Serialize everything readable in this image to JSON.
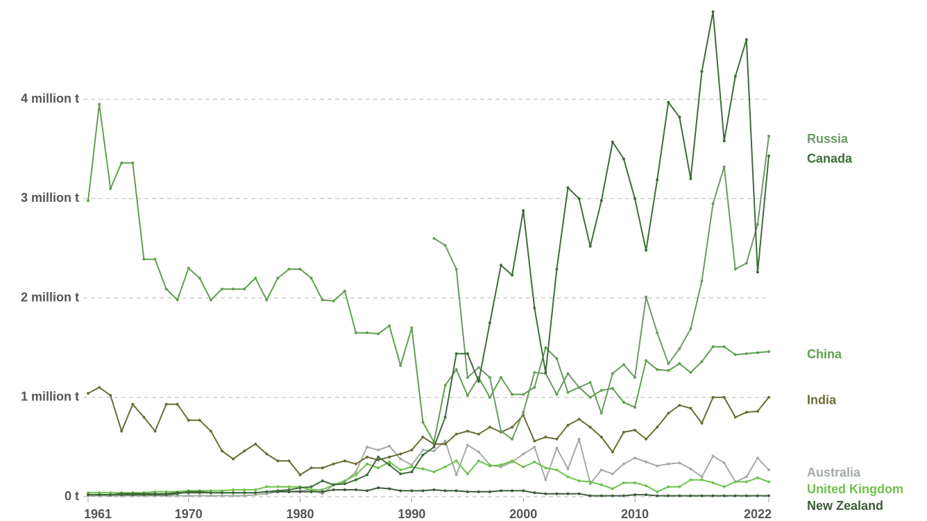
{
  "chart_data": {
    "type": "line",
    "x": [
      1961,
      1962,
      1963,
      1964,
      1965,
      1966,
      1967,
      1968,
      1969,
      1970,
      1971,
      1972,
      1973,
      1974,
      1975,
      1976,
      1977,
      1978,
      1979,
      1980,
      1981,
      1982,
      1983,
      1984,
      1985,
      1986,
      1987,
      1988,
      1989,
      1990,
      1991,
      1992,
      1993,
      1994,
      1995,
      1996,
      1997,
      1998,
      1999,
      2000,
      2001,
      2002,
      2003,
      2004,
      2005,
      2006,
      2007,
      2008,
      2009,
      2010,
      2011,
      2012,
      2013,
      2014,
      2015,
      2016,
      2017,
      2018,
      2019,
      2020,
      2021,
      2022
    ],
    "xlim": [
      1961,
      2022
    ],
    "xticks": [
      1961,
      1970,
      1980,
      1990,
      2000,
      2010,
      2022
    ],
    "ylim": [
      0,
      4950000
    ],
    "yticks": [
      {
        "value": 0,
        "label": "0 t"
      },
      {
        "value": 1000000,
        "label": "1 million t"
      },
      {
        "value": 2000000,
        "label": "2 million t"
      },
      {
        "value": 3000000,
        "label": "3 million t"
      },
      {
        "value": 4000000,
        "label": "4 million t"
      }
    ],
    "grid": true,
    "series": [
      {
        "name": "Australia",
        "color": "#a3aca3",
        "values": [
          10000,
          10000,
          10000,
          10000,
          10000,
          10000,
          10000,
          10000,
          10000,
          10000,
          10000,
          10000,
          10000,
          10000,
          10000,
          20000,
          30000,
          50000,
          50000,
          60000,
          70000,
          30000,
          120000,
          150000,
          250000,
          500000,
          470000,
          510000,
          380000,
          320000,
          470000,
          460000,
          560000,
          220000,
          520000,
          450000,
          320000,
          300000,
          350000,
          430000,
          500000,
          170000,
          490000,
          280000,
          580000,
          130000,
          270000,
          230000,
          330000,
          390000,
          350000,
          310000,
          330000,
          340000,
          280000,
          200000,
          410000,
          340000,
          150000,
          200000,
          390000,
          270000
        ]
      },
      {
        "name": "India",
        "color": "#6b6b35",
        "values": [
          1040000,
          1100000,
          1020000,
          660000,
          930000,
          800000,
          660000,
          930000,
          930000,
          770000,
          770000,
          660000,
          460000,
          380000,
          460000,
          530000,
          430000,
          360000,
          360000,
          220000,
          290000,
          290000,
          330000,
          360000,
          330000,
          400000,
          370000,
          400000,
          430000,
          470000,
          600000,
          530000,
          530000,
          630000,
          660000,
          630000,
          700000,
          650000,
          700000,
          820000,
          560000,
          600000,
          580000,
          720000,
          780000,
          700000,
          600000,
          450000,
          650000,
          670000,
          580000,
          700000,
          840000,
          920000,
          890000,
          740000,
          1000000,
          1000000,
          800000,
          850000,
          860000,
          1000000
        ]
      },
      {
        "name": "United Kingdom",
        "color": "#6cc24a",
        "values": [
          40000,
          40000,
          40000,
          40000,
          40000,
          40000,
          50000,
          50000,
          50000,
          60000,
          60000,
          60000,
          60000,
          70000,
          70000,
          70000,
          100000,
          100000,
          100000,
          100000,
          70000,
          70000,
          120000,
          160000,
          220000,
          330000,
          290000,
          350000,
          270000,
          300000,
          280000,
          250000,
          300000,
          360000,
          230000,
          360000,
          310000,
          320000,
          360000,
          300000,
          350000,
          290000,
          270000,
          200000,
          160000,
          150000,
          120000,
          80000,
          140000,
          140000,
          110000,
          50000,
          100000,
          100000,
          170000,
          170000,
          140000,
          100000,
          150000,
          150000,
          190000,
          150000
        ]
      },
      {
        "name": "New Zealand",
        "color": "#3d5c3a",
        "values": [
          20000,
          20000,
          20000,
          30000,
          30000,
          30000,
          30000,
          30000,
          40000,
          40000,
          40000,
          40000,
          40000,
          40000,
          40000,
          40000,
          50000,
          50000,
          50000,
          50000,
          50000,
          50000,
          70000,
          70000,
          70000,
          60000,
          90000,
          80000,
          60000,
          60000,
          60000,
          70000,
          60000,
          60000,
          50000,
          50000,
          50000,
          60000,
          60000,
          60000,
          40000,
          30000,
          30000,
          30000,
          30000,
          10000,
          10000,
          10000,
          10000,
          20000,
          20000,
          10000,
          10000,
          10000,
          10000,
          10000,
          10000,
          10000,
          10000,
          10000,
          10000,
          10000
        ]
      },
      {
        "name": "China",
        "color": "#5ea04e",
        "values": [
          2980000,
          3950000,
          3100000,
          3360000,
          3360000,
          2390000,
          2390000,
          2090000,
          1980000,
          2300000,
          2200000,
          1980000,
          2090000,
          2090000,
          2090000,
          2200000,
          1980000,
          2200000,
          2290000,
          2290000,
          2200000,
          1980000,
          1970000,
          2070000,
          1650000,
          1650000,
          1640000,
          1720000,
          1320000,
          1700000,
          750000,
          550000,
          1120000,
          1280000,
          1020000,
          1200000,
          1000000,
          1200000,
          1030000,
          1030000,
          1100000,
          1500000,
          1390000,
          1050000,
          1100000,
          1000000,
          1070000,
          1090000,
          950000,
          900000,
          1370000,
          1280000,
          1270000,
          1340000,
          1250000,
          1360000,
          1510000,
          1510000,
          1430000,
          1440000,
          1450000,
          1460000
        ]
      },
      {
        "name": "Russia",
        "color": "#6b9a65",
        "values": [
          null,
          null,
          null,
          null,
          null,
          null,
          null,
          null,
          null,
          null,
          null,
          null,
          null,
          null,
          null,
          null,
          null,
          null,
          null,
          null,
          null,
          null,
          null,
          null,
          null,
          null,
          null,
          null,
          null,
          null,
          null,
          2600000,
          2530000,
          2290000,
          1200000,
          1300000,
          1200000,
          660000,
          580000,
          850000,
          1250000,
          1240000,
          1030000,
          1240000,
          1100000,
          1150000,
          840000,
          1240000,
          1330000,
          1200000,
          2010000,
          1650000,
          1340000,
          1490000,
          1690000,
          2170000,
          2950000,
          3320000,
          2290000,
          2350000,
          2740000,
          3630000
        ]
      },
      {
        "name": "Canada",
        "color": "#3e6b3a",
        "values": [
          20000,
          20000,
          20000,
          20000,
          20000,
          20000,
          20000,
          20000,
          30000,
          50000,
          50000,
          40000,
          40000,
          40000,
          40000,
          40000,
          50000,
          60000,
          70000,
          90000,
          100000,
          160000,
          120000,
          130000,
          170000,
          220000,
          400000,
          320000,
          230000,
          250000,
          420000,
          500000,
          800000,
          1440000,
          1440000,
          1160000,
          1750000,
          2330000,
          2230000,
          2880000,
          1900000,
          1250000,
          2290000,
          3110000,
          3000000,
          2520000,
          2980000,
          3570000,
          3400000,
          3000000,
          2480000,
          3190000,
          3970000,
          3820000,
          3200000,
          4280000,
          4880000,
          3580000,
          4230000,
          4600000,
          2260000,
          3430000
        ]
      }
    ]
  }
}
